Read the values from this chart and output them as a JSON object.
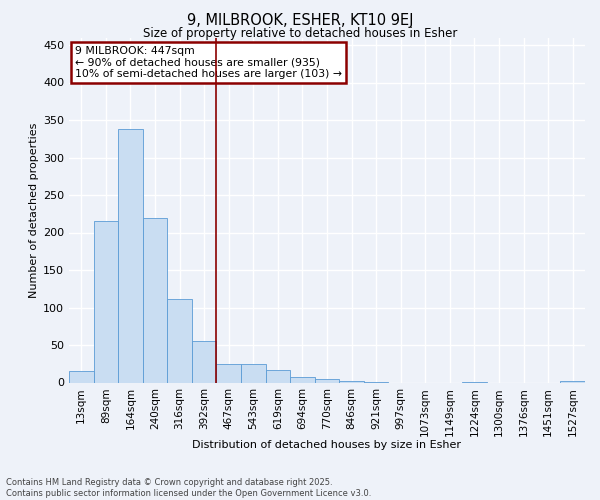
{
  "title1": "9, MILBROOK, ESHER, KT10 9EJ",
  "title2": "Size of property relative to detached houses in Esher",
  "xlabel": "Distribution of detached houses by size in Esher",
  "ylabel": "Number of detached properties",
  "categories": [
    "13sqm",
    "89sqm",
    "164sqm",
    "240sqm",
    "316sqm",
    "392sqm",
    "467sqm",
    "543sqm",
    "619sqm",
    "694sqm",
    "770sqm",
    "846sqm",
    "921sqm",
    "997sqm",
    "1073sqm",
    "1149sqm",
    "1224sqm",
    "1300sqm",
    "1376sqm",
    "1451sqm",
    "1527sqm"
  ],
  "values": [
    15,
    216,
    338,
    220,
    111,
    55,
    25,
    25,
    17,
    7,
    5,
    2,
    1,
    0,
    0,
    0,
    1,
    0,
    0,
    0,
    2
  ],
  "bar_color": "#c9ddf2",
  "bar_edge_color": "#5b9bd5",
  "background_color": "#eef2f9",
  "grid_color": "#ffffff",
  "vline_x": 5.5,
  "vline_color": "#8b0000",
  "annotation_text": "9 MILBROOK: 447sqm\n← 90% of detached houses are smaller (935)\n10% of semi-detached houses are larger (103) →",
  "annotation_box_color": "#ffffff",
  "annotation_box_edge": "#8b0000",
  "footer": "Contains HM Land Registry data © Crown copyright and database right 2025.\nContains public sector information licensed under the Open Government Licence v3.0.",
  "ylim": [
    0,
    460
  ],
  "yticks": [
    0,
    50,
    100,
    150,
    200,
    250,
    300,
    350,
    400,
    450
  ]
}
